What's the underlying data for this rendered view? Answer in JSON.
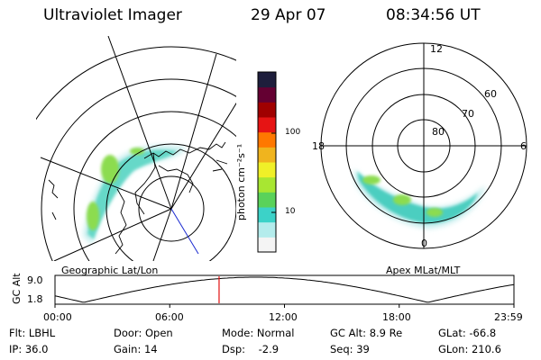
{
  "header": {
    "instrument": "Ultraviolet Imager",
    "date": "29 Apr 07",
    "time": "08:34:56 UT"
  },
  "maps": {
    "left_label": "Geographic Lat/Lon",
    "right_label": "Apex MLat/MLT",
    "polar_lat_labels": [
      "80",
      "70",
      "60"
    ],
    "polar_mlt_labels": [
      "12",
      "18",
      "6",
      "0"
    ]
  },
  "colorbar": {
    "unit_label": "photon cm⁻²s⁻¹",
    "ticks": [
      "100",
      "10"
    ],
    "scale": "log",
    "colors": [
      "#f4f4f4",
      "#b4ecec",
      "#3cd2c8",
      "#5ad25a",
      "#a8e632",
      "#f0f028",
      "#f0b41e",
      "#ff7800",
      "#e61414",
      "#a00000",
      "#640032",
      "#1e1e3c"
    ]
  },
  "timeline": {
    "ylabel": "GC Alt",
    "yticks": [
      "9.0",
      "1.8"
    ],
    "xticks": [
      "00:00",
      "06:00",
      "12:00",
      "18:00",
      "23:59"
    ],
    "marker_time_hours": 8.58
  },
  "footer": {
    "row1": [
      "Flt: LBHL",
      "Door: Open",
      "Mode: Normal",
      "GC Alt: 8.9 Re",
      "GLat: -66.8"
    ],
    "row2": [
      "IP: 36.0",
      "Gain: 14",
      "Dsp:    -2.9",
      "Seq: 39",
      "GLon: 210.6"
    ]
  }
}
